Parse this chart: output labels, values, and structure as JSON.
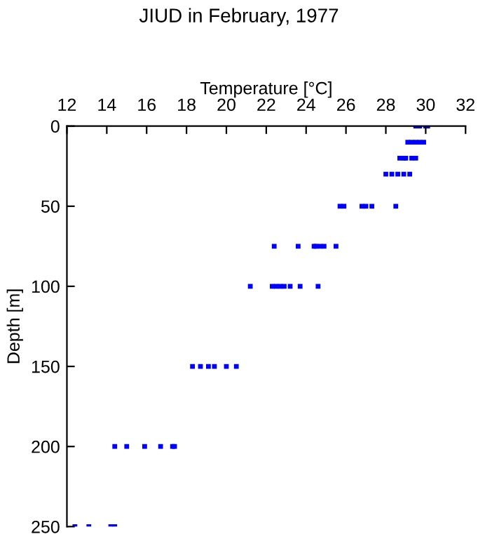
{
  "chart_data": {
    "type": "scatter",
    "title": "JIUD in February, 1977",
    "xlabel": "Temperature [°C]",
    "ylabel": "Depth [m]",
    "x": [
      29.5,
      29.7,
      30.0,
      30.1,
      29.1,
      29.3,
      29.5,
      29.7,
      29.9,
      28.7,
      28.9,
      29.0,
      29.3,
      29.5,
      28.0,
      28.3,
      28.6,
      28.9,
      29.2,
      25.7,
      25.9,
      26.8,
      27.0,
      27.3,
      28.5,
      22.4,
      23.6,
      24.4,
      24.5,
      24.7,
      24.9,
      25.5,
      21.2,
      22.3,
      22.5,
      22.7,
      22.9,
      23.2,
      23.7,
      24.6,
      18.3,
      18.7,
      19.1,
      19.4,
      20.0,
      20.5,
      14.4,
      15.0,
      15.9,
      16.7,
      17.3,
      17.4,
      12.4,
      13.1,
      14.2,
      14.4
    ],
    "series": [
      {
        "color": "#0000ff",
        "values": [
          0,
          0,
          0,
          0,
          10,
          10,
          10,
          10,
          10,
          20,
          20,
          20,
          20,
          20,
          30,
          30,
          30,
          30,
          30,
          50,
          50,
          50,
          50,
          50,
          50,
          75,
          75,
          75,
          75,
          75,
          75,
          75,
          100,
          100,
          100,
          100,
          100,
          100,
          100,
          100,
          150,
          150,
          150,
          150,
          150,
          150,
          200,
          200,
          200,
          200,
          200,
          200,
          250,
          250,
          250,
          250
        ]
      }
    ],
    "xlim": [
      12,
      32
    ],
    "xticks": [
      12,
      14,
      16,
      18,
      20,
      22,
      24,
      26,
      28,
      30,
      32
    ],
    "ylim": [
      250,
      0
    ],
    "yticks": [
      0,
      50,
      100,
      150,
      200,
      250
    ],
    "marker": "square",
    "grid": false,
    "legend": false
  }
}
